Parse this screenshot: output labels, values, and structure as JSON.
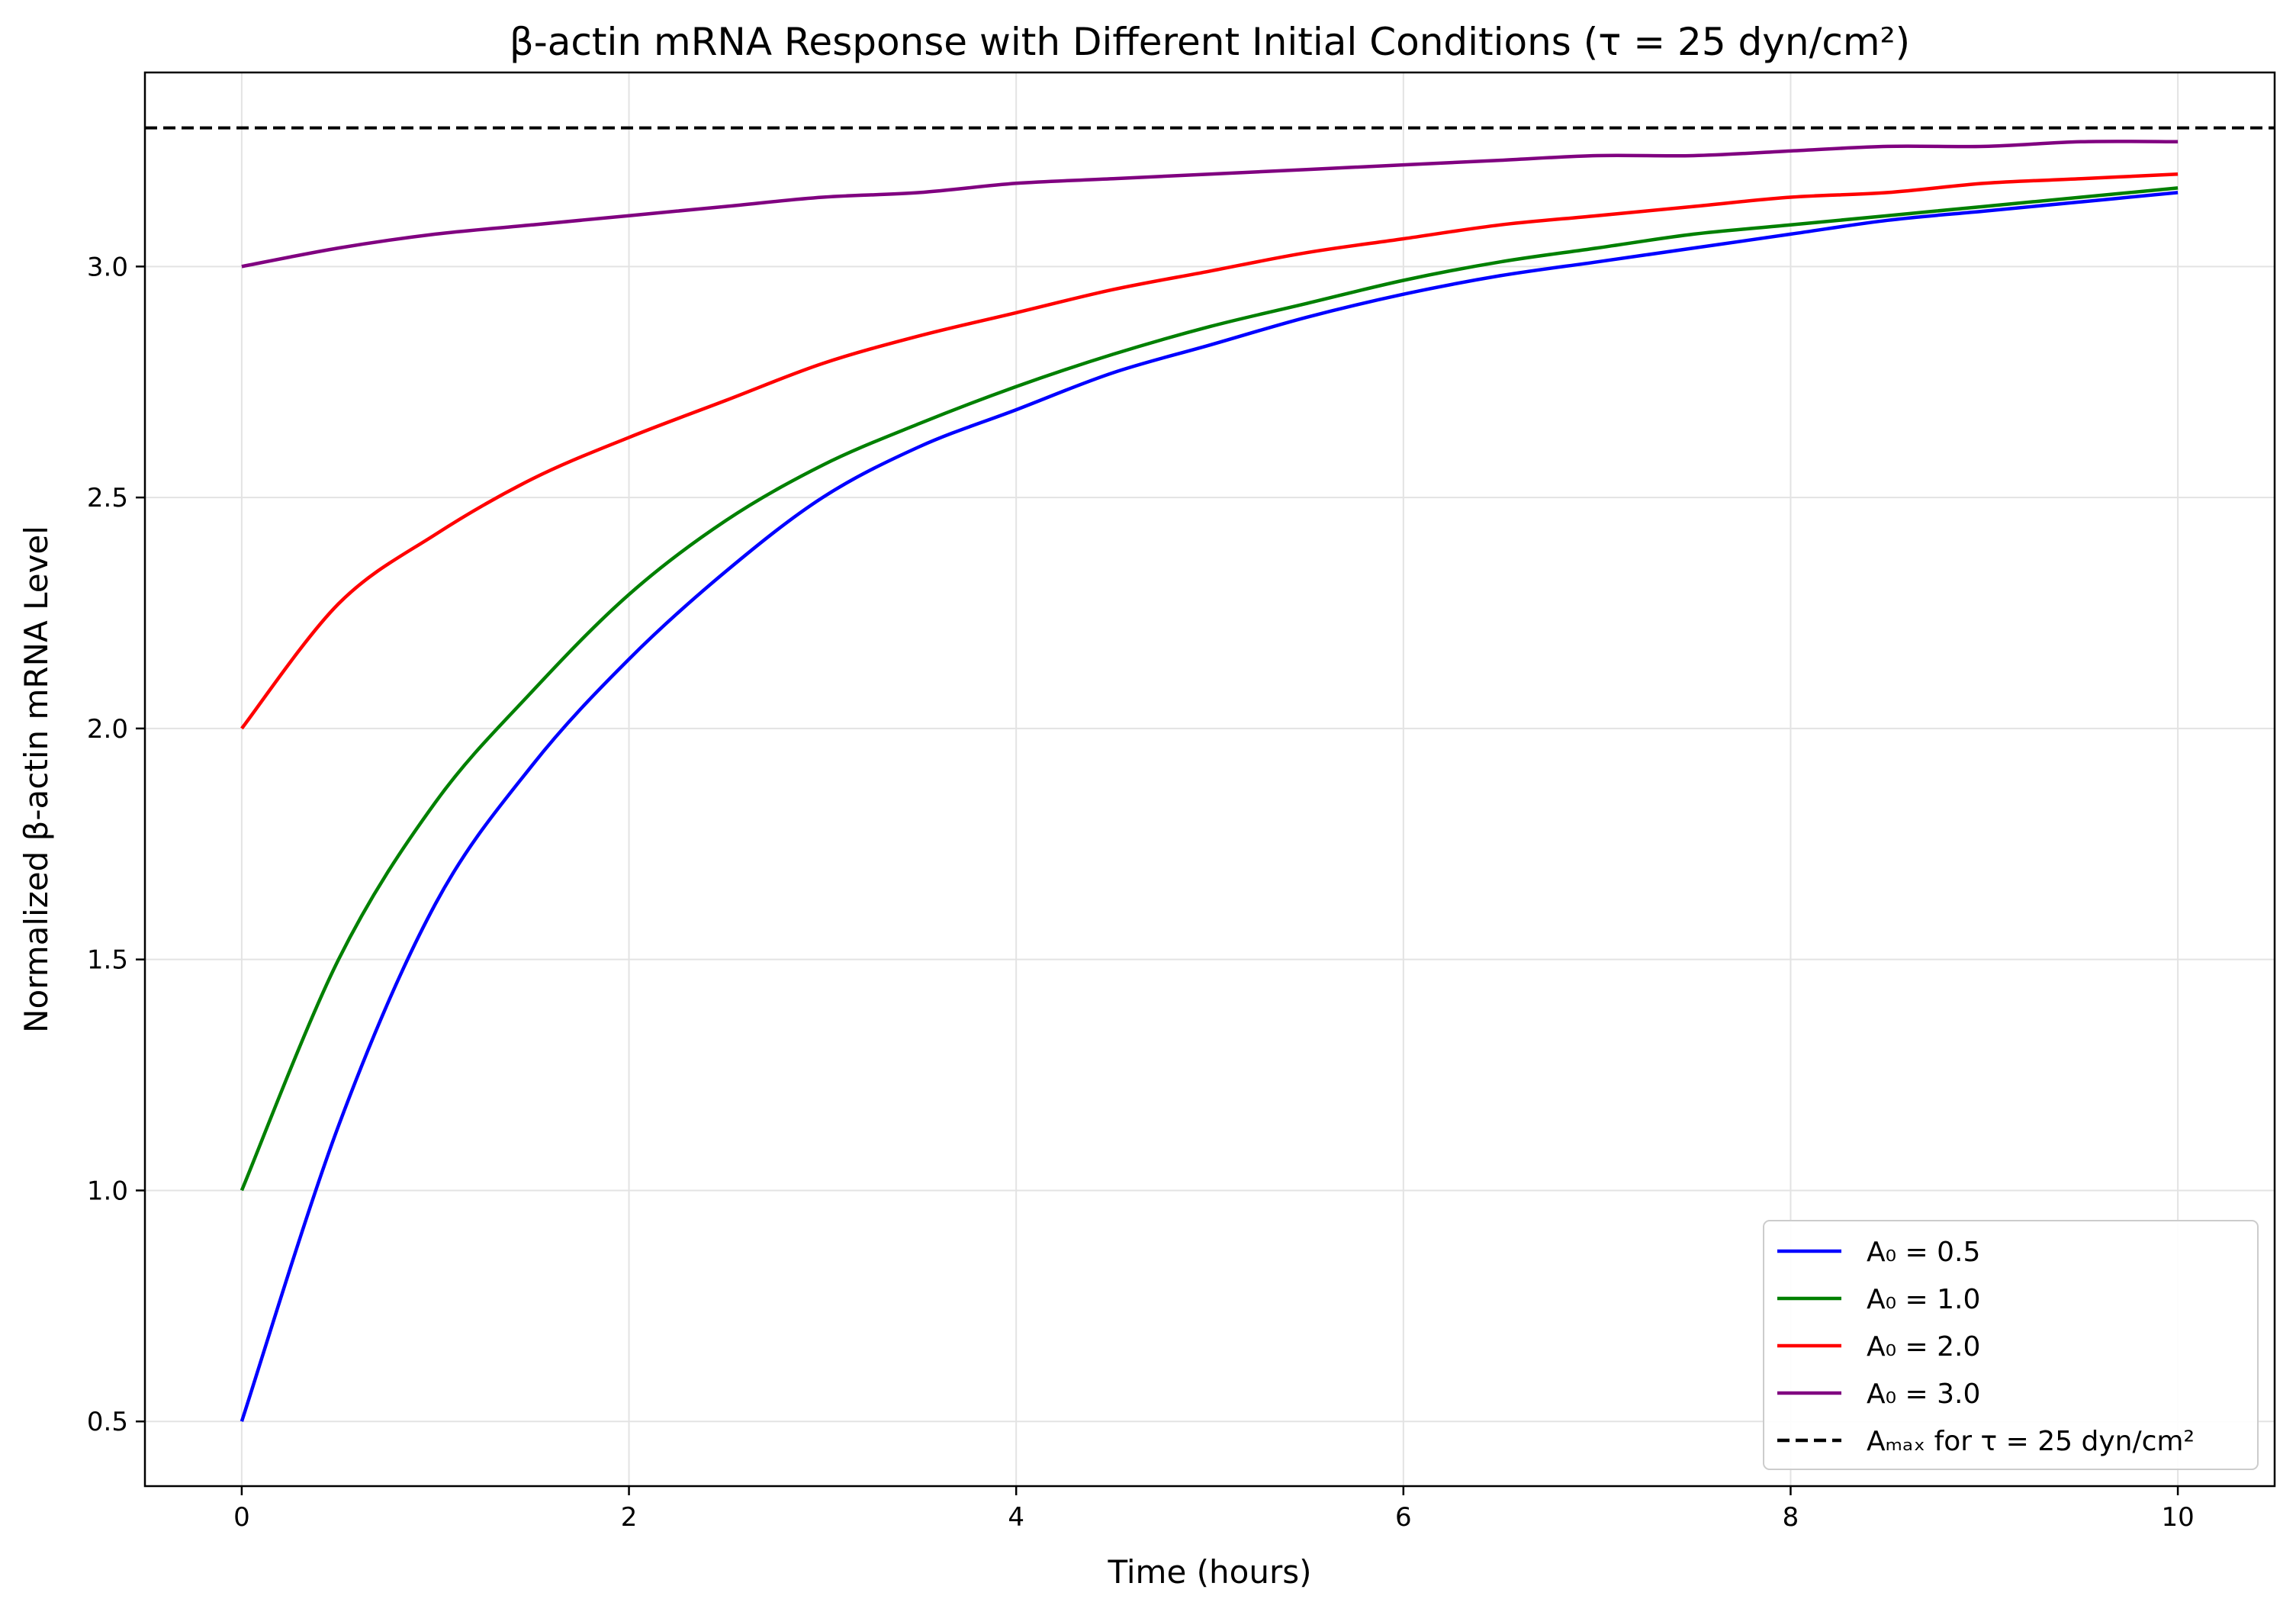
{
  "chart_data": {
    "type": "line",
    "title": "β-actin mRNA Response with Different Initial Conditions (τ = 25 dyn/cm²)",
    "xlabel": "Time (hours)",
    "ylabel": "Normalized β-actin mRNA Level",
    "xlim": [
      -0.5,
      10.5
    ],
    "ylim": [
      0.36,
      3.42
    ],
    "xticks": [
      0,
      2,
      4,
      6,
      8,
      10
    ],
    "xtick_labels": [
      "0",
      "2",
      "4",
      "6",
      "8",
      "10"
    ],
    "yticks": [
      0.5,
      1.0,
      1.5,
      2.0,
      2.5,
      3.0
    ],
    "ytick_labels": [
      "0.5",
      "1.0",
      "1.5",
      "2.0",
      "2.5",
      "3.0"
    ],
    "grid": true,
    "legend_position": "bottom-right",
    "x": [
      0,
      0.5,
      1,
      1.5,
      2,
      2.5,
      3,
      3.5,
      4,
      4.5,
      5,
      5.5,
      6,
      6.5,
      7,
      7.5,
      8,
      8.5,
      9,
      9.5,
      10
    ],
    "series": [
      {
        "name": "A₀ = 0.5",
        "color": "#0000ff",
        "values": [
          0.5,
          1.14,
          1.62,
          1.92,
          2.15,
          2.34,
          2.5,
          2.61,
          2.69,
          2.77,
          2.83,
          2.89,
          2.94,
          2.98,
          3.01,
          3.04,
          3.07,
          3.1,
          3.12,
          3.14,
          3.16
        ]
      },
      {
        "name": "A₀ = 1.0",
        "color": "#008000",
        "values": [
          1.0,
          1.5,
          1.84,
          2.08,
          2.29,
          2.45,
          2.57,
          2.66,
          2.74,
          2.81,
          2.87,
          2.92,
          2.97,
          3.01,
          3.04,
          3.07,
          3.09,
          3.11,
          3.13,
          3.15,
          3.17
        ]
      },
      {
        "name": "A₀ = 2.0",
        "color": "#ff0000",
        "values": [
          2.0,
          2.27,
          2.42,
          2.54,
          2.63,
          2.71,
          2.79,
          2.85,
          2.9,
          2.95,
          2.99,
          3.03,
          3.06,
          3.09,
          3.11,
          3.13,
          3.15,
          3.16,
          3.18,
          3.19,
          3.2
        ]
      },
      {
        "name": "A₀ = 3.0",
        "color": "#800080",
        "values": [
          3.0,
          3.04,
          3.07,
          3.09,
          3.11,
          3.13,
          3.15,
          3.16,
          3.18,
          3.19,
          3.2,
          3.21,
          3.22,
          3.23,
          3.24,
          3.24,
          3.25,
          3.26,
          3.26,
          3.27,
          3.27
        ]
      }
    ],
    "reference_line": {
      "name": "Aₘₐₓ for τ = 25 dyn/cm²",
      "y": 3.3,
      "color": "#000000",
      "style": "dashed"
    }
  }
}
